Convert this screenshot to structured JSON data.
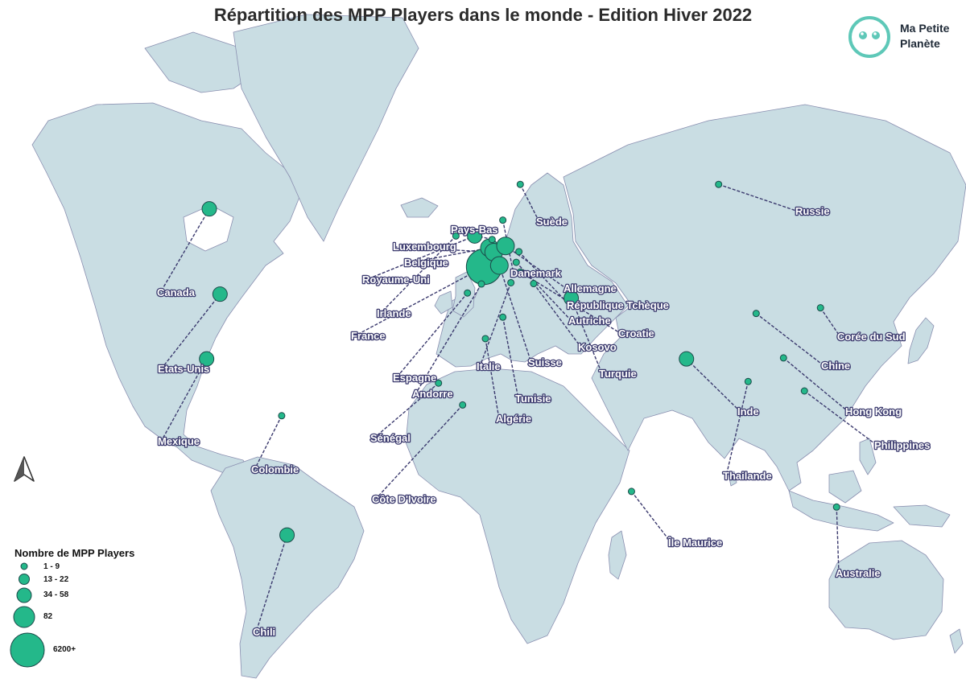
{
  "title": "Répartition des MPP Players dans le monde - Edition Hiver 2022",
  "logo": {
    "line1": "Ma Petite",
    "line2": "Planète",
    "color": "#5ec8b8",
    "icon": "smiling-planet-icon"
  },
  "legend": {
    "title": "Nombre de MPP Players",
    "classes": [
      "1 - 9",
      "13 - 22",
      "34 - 58",
      "82",
      "6200+"
    ]
  },
  "colors": {
    "land": "#c9dde3",
    "border": "#8a8fb0",
    "circle": "#24b88a",
    "circle_stroke": "#1c4a4a",
    "leader": "#3b3a6e",
    "ocean": "#ffffff"
  },
  "north_arrow": "north-arrow-icon",
  "countries": [
    {
      "name": "Canada",
      "class": 2,
      "lon": -100,
      "lat": 58
    },
    {
      "name": "Etats-Unis",
      "class": 2,
      "lon": -96,
      "lat": 40
    },
    {
      "name": "Mexique",
      "class": 2,
      "lon": -101,
      "lat": 22
    },
    {
      "name": "Colombie",
      "class": 1,
      "lon": -73,
      "lat": 4
    },
    {
      "name": "Chili",
      "class": 2,
      "lon": -71,
      "lat": -33
    },
    {
      "name": "Royaume-Uni",
      "class": 2,
      "lon": -1,
      "lat": 53
    },
    {
      "name": "Irlande",
      "class": 1,
      "lon": -8,
      "lat": 53
    },
    {
      "name": "France",
      "class": 5,
      "lon": 2.5,
      "lat": 46.5
    },
    {
      "name": "Belgique",
      "class": 3,
      "lon": 4.5,
      "lat": 50.6
    },
    {
      "name": "Luxembourg",
      "class": 3,
      "lon": 6.1,
      "lat": 49.7
    },
    {
      "name": "Pays-Bas",
      "class": 1,
      "lon": 5.5,
      "lat": 52.3
    },
    {
      "name": "Allemagne",
      "class": 3,
      "lon": 10.5,
      "lat": 51
    },
    {
      "name": "Danemark",
      "class": 1,
      "lon": 9.5,
      "lat": 56
    },
    {
      "name": "Suède",
      "class": 1,
      "lon": 16,
      "lat": 62
    },
    {
      "name": "République Tchèque",
      "class": 1,
      "lon": 15.5,
      "lat": 49.8
    },
    {
      "name": "Autriche",
      "class": 1,
      "lon": 14.5,
      "lat": 47.5
    },
    {
      "name": "Suisse",
      "class": 3,
      "lon": 8.2,
      "lat": 46.8
    },
    {
      "name": "Croatie",
      "class": 1,
      "lon": 16,
      "lat": 45.3
    },
    {
      "name": "Kosovo",
      "class": 1,
      "lon": 21,
      "lat": 42.6
    },
    {
      "name": "Italie",
      "class": 1,
      "lon": 12.5,
      "lat": 42.8
    },
    {
      "name": "Espagne",
      "class": 1,
      "lon": -3.7,
      "lat": 40.3
    },
    {
      "name": "Andorre",
      "class": 1,
      "lon": 1.5,
      "lat": 42.5
    },
    {
      "name": "Tunisie",
      "class": 1,
      "lon": 9.5,
      "lat": 34
    },
    {
      "name": "Algérie",
      "class": 1,
      "lon": 3,
      "lat": 28
    },
    {
      "name": "Turquie",
      "class": 2,
      "lon": 35,
      "lat": 39
    },
    {
      "name": "Sénégal",
      "class": 1,
      "lon": -14.5,
      "lat": 14.5
    },
    {
      "name": "Côte D'Ivoire",
      "class": 1,
      "lon": -5.5,
      "lat": 7.5
    },
    {
      "name": "Russie",
      "class": 1,
      "lon": 90,
      "lat": 62
    },
    {
      "name": "Chine",
      "class": 1,
      "lon": 104,
      "lat": 35
    },
    {
      "name": "Corée du Sud",
      "class": 1,
      "lon": 128,
      "lat": 36.5
    },
    {
      "name": "Inde",
      "class": 2,
      "lon": 78,
      "lat": 22
    },
    {
      "name": "Hong Kong",
      "class": 1,
      "lon": 114.2,
      "lat": 22.3
    },
    {
      "name": "Thailande",
      "class": 1,
      "lon": 101,
      "lat": 15
    },
    {
      "name": "Philippines",
      "class": 1,
      "lon": 122,
      "lat": 12
    },
    {
      "name": "Île Maurice",
      "class": 1,
      "lon": 57.5,
      "lat": -20.3
    },
    {
      "name": "Australie",
      "class": 1,
      "lon": 134,
      "lat": -25
    }
  ]
}
